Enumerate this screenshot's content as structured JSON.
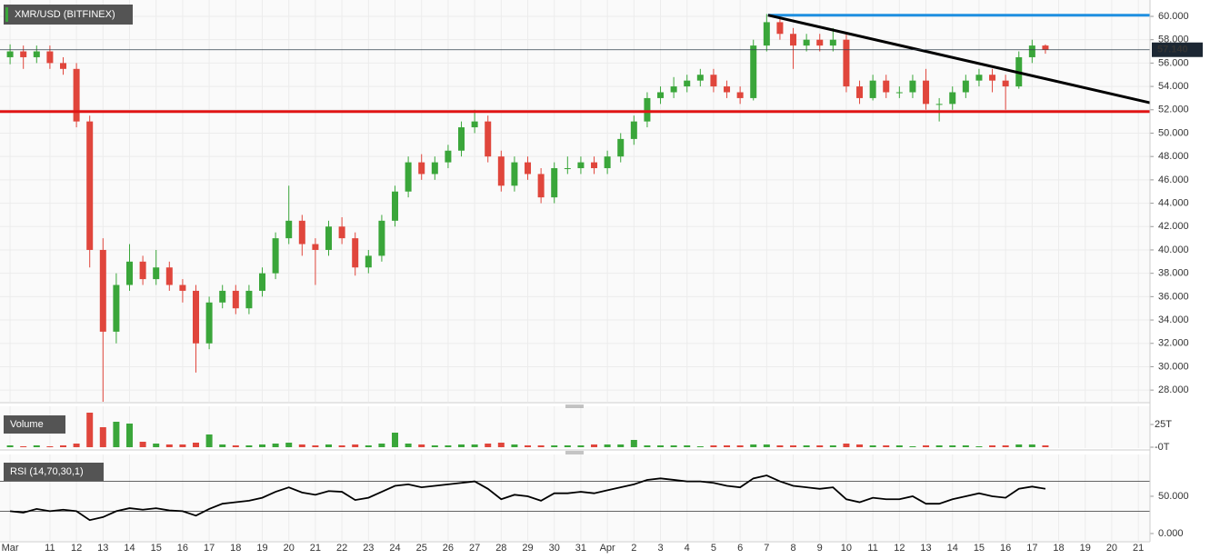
{
  "chart_data": {
    "type": "candlestick",
    "title": "XMR/USD (BITFINEX)",
    "x": [
      9.5,
      10,
      10.5,
      11,
      11.5,
      12,
      12.5,
      13,
      13.5,
      14,
      14.5,
      15,
      15.5,
      16,
      16.5,
      17,
      17.5,
      18,
      18.5,
      19,
      19.5,
      20,
      20.5,
      21,
      21.5,
      22,
      22.5,
      23,
      23.5,
      24,
      24.5,
      25,
      25.5,
      26,
      26.5,
      27,
      27.5,
      28,
      28.5,
      29,
      29.5,
      30,
      30.5,
      31,
      31.5,
      32,
      32.5,
      33,
      33.5,
      34,
      34.5,
      35,
      35.5,
      36,
      36.5,
      37,
      37.5,
      38,
      38.5,
      39,
      39.5,
      40,
      40.5,
      41,
      41.5,
      42,
      42.5,
      43,
      43.5,
      44,
      44.5,
      45,
      45.5,
      46,
      46.5,
      47,
      47.5,
      48,
      48.5
    ],
    "open": [
      56.5,
      57,
      56.5,
      57,
      56,
      55.5,
      51,
      40,
      33,
      37,
      39,
      37.5,
      38.5,
      37,
      36.5,
      32,
      35.5,
      36.5,
      35,
      36.5,
      38,
      41,
      42.5,
      40.5,
      40,
      42,
      41,
      38.5,
      39.5,
      42.5,
      45,
      47.5,
      46.5,
      47.5,
      48.5,
      50.5,
      51,
      48,
      45.5,
      47.5,
      46.5,
      44.5,
      47,
      47,
      47.5,
      47,
      48,
      49.5,
      51,
      53,
      53.5,
      54,
      54.5,
      55,
      54,
      53.5,
      53,
      57.5,
      59.5,
      58.5,
      57.5,
      58,
      57.5,
      58,
      54,
      53,
      54.5,
      53.5,
      53.5,
      54.5,
      52.5,
      52.5,
      53.5,
      54.5,
      55,
      54.5,
      54,
      56.5,
      57.5
    ],
    "high": [
      57.6,
      57.5,
      57.5,
      57.5,
      56.5,
      56,
      51.5,
      41,
      38,
      40.5,
      39.5,
      40,
      39,
      37.5,
      37,
      36,
      37,
      37,
      37,
      38.5,
      41.5,
      45.5,
      43,
      41,
      42.5,
      42.8,
      41.5,
      40,
      43,
      45.5,
      48,
      48.2,
      48,
      49,
      51,
      52,
      51.5,
      48.5,
      48,
      48,
      47,
      47.5,
      48,
      48,
      48,
      48.5,
      50,
      51.5,
      53.5,
      54,
      54.8,
      55,
      55.5,
      55.5,
      54.5,
      54,
      58,
      60.2,
      60,
      59,
      58.5,
      58.5,
      59,
      58.5,
      54.5,
      55,
      55,
      54,
      55,
      55.5,
      53,
      54,
      55,
      55.5,
      55.5,
      55,
      57,
      58,
      57.6
    ],
    "low": [
      55.9,
      55.5,
      56,
      55.5,
      55,
      50.5,
      38.5,
      27,
      32,
      36.5,
      37,
      37,
      36.5,
      35.5,
      29.5,
      31.5,
      35,
      34.5,
      34.5,
      36,
      37.5,
      40.5,
      39.5,
      37,
      39.5,
      40.5,
      37.8,
      38,
      39,
      42,
      44.5,
      46,
      46,
      47,
      48,
      50,
      47.5,
      45,
      45,
      46,
      44,
      44,
      46.5,
      46.5,
      46.5,
      46.5,
      47.5,
      49,
      50.5,
      52.5,
      53,
      53.5,
      54,
      53.5,
      53,
      52.5,
      52.8,
      57,
      58,
      55.5,
      57,
      57,
      57,
      53.5,
      52.5,
      52.8,
      53,
      53,
      53,
      52,
      51,
      52,
      53,
      54,
      53.5,
      52,
      53.8,
      56,
      56.8
    ],
    "close": [
      57,
      56.5,
      57,
      56,
      55.5,
      51,
      40,
      33,
      37,
      39,
      37.5,
      38.5,
      37,
      36.5,
      32,
      35.5,
      36.5,
      35,
      36.5,
      38,
      41,
      42.5,
      40.5,
      40,
      42,
      41,
      38.5,
      39.5,
      42.5,
      45,
      47.5,
      46.5,
      47.5,
      48.5,
      50.5,
      51,
      48,
      45.5,
      47.5,
      46.5,
      44.5,
      47,
      47,
      47.5,
      47,
      48,
      49.5,
      51,
      53,
      53.5,
      54,
      54.5,
      55,
      54,
      53.5,
      53,
      57.5,
      59.5,
      58.5,
      57.5,
      58,
      57.5,
      58,
      54,
      53,
      54.5,
      53.5,
      53.5,
      54.5,
      52.5,
      52.5,
      53.5,
      54.5,
      55,
      54.5,
      54,
      56.5,
      57.5,
      57.14
    ],
    "up_color": "#3aa63a",
    "down_color": "#e0463c",
    "xlim": [
      9.12,
      52.44
    ],
    "xticks": [
      {
        "value": 9.5,
        "label": "Mar"
      },
      11,
      12,
      13,
      14,
      15,
      16,
      17,
      18,
      19,
      20,
      21,
      22,
      23,
      24,
      25,
      26,
      27,
      28,
      29,
      30,
      31,
      {
        "value": 32,
        "label": "Apr"
      },
      {
        "value": 33,
        "label": "2"
      },
      {
        "value": 34,
        "label": "3"
      },
      {
        "value": 35,
        "label": "4"
      },
      {
        "value": 36,
        "label": "5"
      },
      {
        "value": 37,
        "label": "6"
      },
      {
        "value": 38,
        "label": "7"
      },
      {
        "value": 39,
        "label": "8"
      },
      {
        "value": 40,
        "label": "9"
      },
      {
        "value": 41,
        "label": "10"
      },
      {
        "value": 42,
        "label": "11"
      },
      {
        "value": 43,
        "label": "12"
      },
      {
        "value": 44,
        "label": "13"
      },
      {
        "value": 45,
        "label": "14"
      },
      {
        "value": 46,
        "label": "15"
      },
      {
        "value": 47,
        "label": "16"
      },
      {
        "value": 48,
        "label": "17"
      },
      {
        "value": 49,
        "label": "18"
      },
      {
        "value": 50,
        "label": "19"
      },
      {
        "value": 51,
        "label": "20"
      },
      {
        "value": 52,
        "label": "21"
      }
    ],
    "ylim": [
      27,
      61.4
    ],
    "yticks": [
      {
        "value": 28,
        "label": "28.000"
      },
      {
        "value": 30,
        "label": "30.000"
      },
      {
        "value": 32,
        "label": "32.000"
      },
      {
        "value": 34,
        "label": "34.000"
      },
      {
        "value": 36,
        "label": "36.000"
      },
      {
        "value": 38,
        "label": "38.000"
      },
      {
        "value": 40,
        "label": "40.000"
      },
      {
        "value": 42,
        "label": "42.000"
      },
      {
        "value": 44,
        "label": "44.000"
      },
      {
        "value": 46,
        "label": "46.000"
      },
      {
        "value": 48,
        "label": "48.000"
      },
      {
        "value": 50,
        "label": "50.000"
      },
      {
        "value": 52,
        "label": "52.000"
      },
      {
        "value": 54,
        "label": "54.000"
      },
      {
        "value": 56,
        "label": "56.000"
      },
      {
        "value": 58,
        "label": "58.000"
      },
      {
        "value": 60,
        "label": "60.000"
      }
    ],
    "grid": true,
    "last_price": 57.14,
    "last_price_label": "57.140",
    "lines": [
      {
        "color": "#1e8fe0",
        "x": [
          38.05,
          52.44
        ],
        "y": [
          60.1,
          60.1
        ]
      },
      {
        "color": "#e01414",
        "x": [
          9.12,
          52.44
        ],
        "y": [
          51.85,
          51.85
        ]
      },
      {
        "color": "#000000",
        "x": [
          38.05,
          52.44
        ],
        "y": [
          60.1,
          52.6
        ]
      }
    ],
    "volume": {
      "label": "Volume",
      "values": [
        2,
        1,
        2,
        1,
        2,
        4,
        38,
        22,
        28,
        26,
        6,
        4,
        3,
        3,
        5,
        14,
        3,
        2,
        2,
        3,
        4,
        5,
        3,
        2,
        3,
        2,
        3,
        2,
        4,
        16,
        4,
        3,
        2,
        2,
        3,
        3,
        4,
        5,
        3,
        2,
        2,
        2,
        2,
        2,
        3,
        3,
        3,
        8,
        2,
        2,
        2,
        2,
        1,
        2,
        2,
        2,
        3,
        3,
        2,
        2,
        2,
        2,
        2,
        4,
        3,
        2,
        2,
        2,
        1,
        2,
        2,
        2,
        2,
        1,
        2,
        2,
        3,
        3,
        2
      ],
      "ylim": [
        0,
        36
      ],
      "yticks": [
        {
          "value": 25,
          "label": "25T"
        },
        {
          "value": 0,
          "label": "-0T"
        }
      ]
    },
    "rsi": {
      "label": "RSI (14,70,30,1)",
      "color": "#000000",
      "values": [
        30,
        28,
        33,
        30,
        32,
        30,
        18,
        22,
        30,
        34,
        32,
        34,
        31,
        30,
        24,
        33,
        40,
        42,
        44,
        48,
        56,
        62,
        55,
        52,
        57,
        56,
        45,
        48,
        56,
        64,
        66,
        62,
        64,
        66,
        68,
        70,
        60,
        46,
        52,
        50,
        44,
        54,
        54,
        56,
        54,
        58,
        62,
        66,
        72,
        74,
        72,
        70,
        70,
        68,
        64,
        62,
        74,
        78,
        70,
        64,
        62,
        60,
        62,
        46,
        42,
        48,
        46,
        46,
        50,
        40,
        40,
        46,
        50,
        54,
        50,
        48,
        60,
        63,
        60
      ],
      "ylim": [
        -9.8,
        100
      ],
      "yticks": [
        {
          "value": 50,
          "label": "50.000"
        },
        {
          "value": 0,
          "label": "0.000"
        }
      ],
      "levels": [
        70,
        30
      ]
    }
  }
}
